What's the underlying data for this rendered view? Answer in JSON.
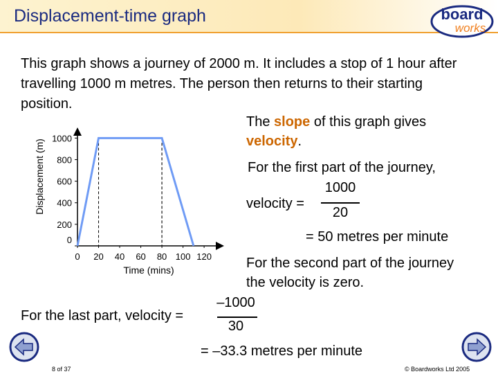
{
  "header": {
    "title": "Displacement-time graph",
    "logo_top": "board",
    "logo_bottom": "works"
  },
  "intro": "This graph shows a journey of 2000 m. It includes a stop of 1 hour after travelling 1000 m metres. The person then returns to their starting position.",
  "chart_data": {
    "type": "line",
    "x_label": "Time (mins)",
    "y_label": "Displacement (m)",
    "x": [
      0,
      20,
      80,
      110
    ],
    "series": [
      {
        "color": "#6f9bf5",
        "values": [
          0,
          1000,
          1000,
          0
        ]
      }
    ],
    "xlim": [
      0,
      135
    ],
    "ylim": [
      0,
      1060
    ],
    "xticks": [
      0,
      20,
      40,
      60,
      80,
      100,
      120
    ],
    "yticks": [
      0,
      200,
      400,
      600,
      800,
      1000
    ]
  },
  "explanation": {
    "slope_sentence": [
      "The ",
      "slope",
      " of this graph gives ",
      "velocity",
      "."
    ],
    "first_part": "For the first part of the journey,",
    "velocity_label": "velocity =",
    "first_numerator": "1000",
    "first_denominator": "20",
    "first_result": "= 50 metres per minute",
    "second_part": "For the second part of the journey the velocity is zero.",
    "last_part": "For the last part, velocity =",
    "last_numerator": "–1000",
    "last_denominator": "30",
    "last_result": "= –33.3 metres per minute"
  },
  "footer": {
    "page": "8 of 37",
    "copyright": "© Boardworks Ltd 2005"
  }
}
